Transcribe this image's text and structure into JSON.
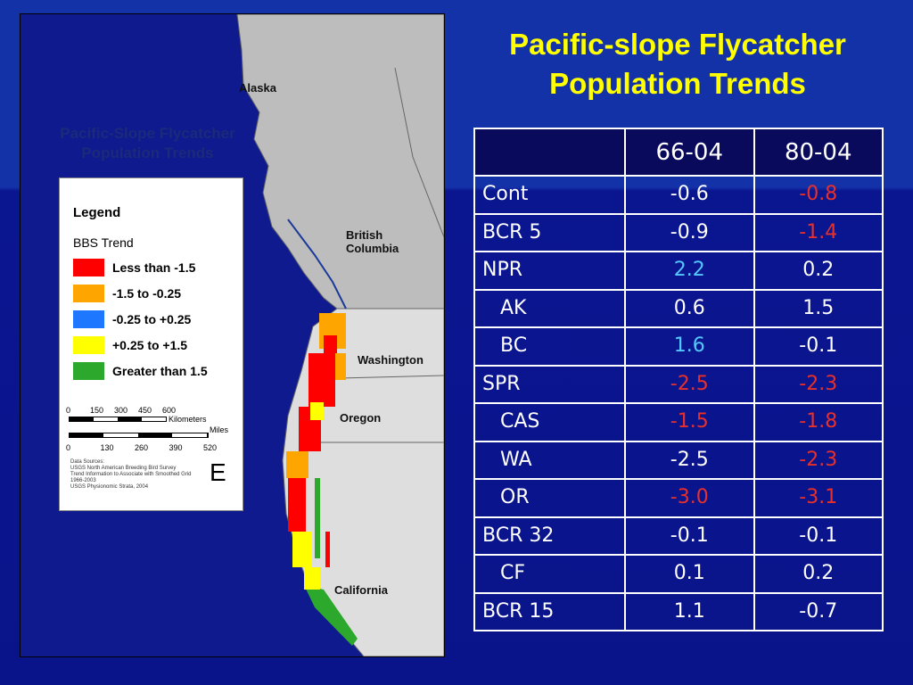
{
  "title": "Pacific-slope Flycatcher Population Trends",
  "map": {
    "title": "Pacific-Slope Flycatcher Population Trends",
    "places": [
      "Alaska",
      "British Columbia",
      "Washington",
      "Oregon",
      "California"
    ],
    "legend": {
      "title": "Legend",
      "subtitle": "BBS Trend",
      "items": [
        {
          "label": "Less than -1.5",
          "color": "#ff0000"
        },
        {
          "label": "-1.5 to -0.25",
          "color": "#ffa500"
        },
        {
          "label": "-0.25 to +0.25",
          "color": "#1e78ff"
        },
        {
          "label": "+0.25 to +1.5",
          "color": "#ffff00"
        },
        {
          "label": "Greater than 1.5",
          "color": "#2ca82c"
        }
      ]
    },
    "scale": {
      "km_ticks": [
        "0",
        "150",
        "300",
        "450",
        "600"
      ],
      "km_unit": "Kilometers",
      "mile_ticks": [
        "0",
        "130",
        "260",
        "390",
        "520"
      ],
      "mile_unit": "Miles"
    },
    "sources": [
      "Data Sources:",
      "USGS North American Breeding Bird Survey",
      "Trend Information to Associate with Smoothed Grid",
      "1966-2003",
      "USGS Physionomic Strata, 2004"
    ],
    "panel_letter": "E"
  },
  "table": {
    "header": [
      "66-04",
      "80-04"
    ],
    "rows": [
      {
        "label": "Cont",
        "sub": false,
        "values": [
          "-0.6",
          "-0.8"
        ],
        "colors": [
          "white",
          "red"
        ]
      },
      {
        "label": "BCR 5",
        "sub": false,
        "values": [
          "-0.9",
          "-1.4"
        ],
        "colors": [
          "white",
          "red"
        ]
      },
      {
        "label": "NPR",
        "sub": false,
        "values": [
          "2.2",
          "0.2"
        ],
        "colors": [
          "cyan",
          "white"
        ]
      },
      {
        "label": "AK",
        "sub": true,
        "values": [
          "0.6",
          "1.5"
        ],
        "colors": [
          "white",
          "white"
        ]
      },
      {
        "label": "BC",
        "sub": true,
        "values": [
          "1.6",
          "-0.1"
        ],
        "colors": [
          "cyan",
          "white"
        ]
      },
      {
        "label": "SPR",
        "sub": false,
        "values": [
          "-2.5",
          "-2.3"
        ],
        "colors": [
          "red",
          "red"
        ]
      },
      {
        "label": "CAS",
        "sub": true,
        "values": [
          "-1.5",
          "-1.8"
        ],
        "colors": [
          "red",
          "red"
        ]
      },
      {
        "label": "WA",
        "sub": true,
        "values": [
          "-2.5",
          "-2.3"
        ],
        "colors": [
          "white",
          "red"
        ]
      },
      {
        "label": "OR",
        "sub": true,
        "values": [
          "-3.0",
          "-3.1"
        ],
        "colors": [
          "red",
          "red"
        ]
      },
      {
        "label": "BCR 32",
        "sub": false,
        "values": [
          "-0.1",
          "-0.1"
        ],
        "colors": [
          "white",
          "white"
        ]
      },
      {
        "label": "CF",
        "sub": true,
        "values": [
          "0.1",
          "0.2"
        ],
        "colors": [
          "white",
          "white"
        ]
      },
      {
        "label": "BCR 15",
        "sub": false,
        "values": [
          "1.1",
          "-0.7"
        ],
        "colors": [
          "white",
          "white"
        ]
      }
    ]
  }
}
